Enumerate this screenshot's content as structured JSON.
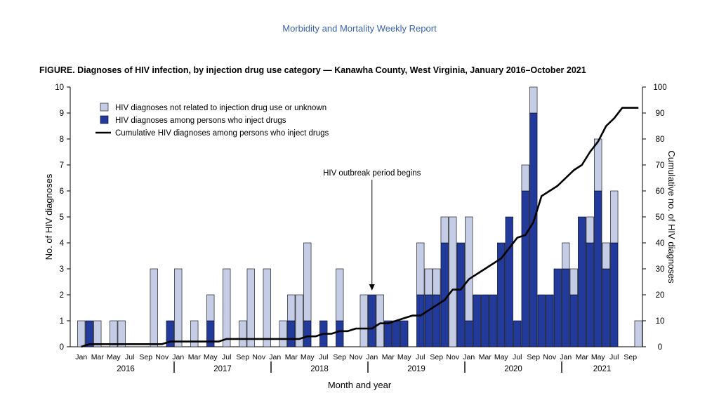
{
  "header": "Morbidity and Mortality Weekly Report",
  "figure_title": "FIGURE. Diagnoses of HIV infection, by injection drug use category — Kanawha County, West Virginia, January 2016–October 2021",
  "colors": {
    "not_pwid": "#c5cde6",
    "pwid": "#213a9c",
    "cumulative": "#000000"
  },
  "chart_data": {
    "type": "bar",
    "stacked": true,
    "xlabel": "Month and year",
    "ylabel": "No. of HIV diagnoses",
    "y2label": "Cumulative no. of HIV diagnoses",
    "ylim": [
      0,
      10
    ],
    "y2lim": [
      0,
      100
    ],
    "yticks": [
      0,
      1,
      2,
      3,
      4,
      5,
      6,
      7,
      8,
      9,
      10
    ],
    "y2ticks": [
      0,
      10,
      20,
      30,
      40,
      50,
      60,
      70,
      80,
      90,
      100
    ],
    "years": [
      "2016",
      "2017",
      "2018",
      "2019",
      "2020",
      "2021"
    ],
    "month_tick_labels": [
      "Jan",
      "Mar",
      "May",
      "Jul",
      "Sep",
      "Nov"
    ],
    "month_tick_labels_2021": [
      "Jan",
      "Mar",
      "May",
      "Jul",
      "Sep"
    ],
    "legend_position": "top-left",
    "legend": [
      "HIV diagnoses not related to injection drug use or unknown",
      "HIV diagnoses among persons who inject drugs",
      "Cumulative HIV diagnoses among persons who inject drugs"
    ],
    "annotation": {
      "text": "HIV outbreak period begins",
      "x": "2019-01"
    },
    "categories": [
      "2016-01",
      "2016-02",
      "2016-03",
      "2016-04",
      "2016-05",
      "2016-06",
      "2016-07",
      "2016-08",
      "2016-09",
      "2016-10",
      "2016-11",
      "2016-12",
      "2017-01",
      "2017-02",
      "2017-03",
      "2017-04",
      "2017-05",
      "2017-06",
      "2017-07",
      "2017-08",
      "2017-09",
      "2017-10",
      "2017-11",
      "2017-12",
      "2018-01",
      "2018-02",
      "2018-03",
      "2018-04",
      "2018-05",
      "2018-06",
      "2018-07",
      "2018-08",
      "2018-09",
      "2018-10",
      "2018-11",
      "2018-12",
      "2019-01",
      "2019-02",
      "2019-03",
      "2019-04",
      "2019-05",
      "2019-06",
      "2019-07",
      "2019-08",
      "2019-09",
      "2019-10",
      "2019-11",
      "2019-12",
      "2020-01",
      "2020-02",
      "2020-03",
      "2020-04",
      "2020-05",
      "2020-06",
      "2020-07",
      "2020-08",
      "2020-09",
      "2020-10",
      "2020-11",
      "2020-12",
      "2021-01",
      "2021-02",
      "2021-03",
      "2021-04",
      "2021-05",
      "2021-06",
      "2021-07",
      "2021-08",
      "2021-09",
      "2021-10"
    ],
    "series": [
      {
        "name": "HIV diagnoses among persons who inject drugs",
        "values": [
          0,
          1,
          0,
          0,
          0,
          0,
          0,
          0,
          0,
          0,
          0,
          1,
          0,
          0,
          0,
          0,
          1,
          0,
          0,
          0,
          0,
          0,
          0,
          0,
          0,
          0,
          1,
          0,
          1,
          0,
          1,
          0,
          1,
          0,
          0,
          0,
          2,
          0,
          1,
          1,
          1,
          0,
          2,
          2,
          2,
          4,
          0,
          4,
          1,
          2,
          2,
          2,
          4,
          5,
          1,
          6,
          9,
          2,
          2,
          3,
          3,
          2,
          5,
          4,
          6,
          3,
          4,
          0,
          0,
          0
        ]
      },
      {
        "name": "HIV diagnoses not related to injection drug use or unknown",
        "values": [
          1,
          0,
          1,
          0,
          1,
          1,
          0,
          0,
          0,
          3,
          0,
          0,
          3,
          0,
          1,
          0,
          1,
          0,
          3,
          0,
          1,
          3,
          0,
          3,
          0,
          1,
          1,
          2,
          3,
          0,
          0,
          0,
          2,
          0,
          0,
          2,
          0,
          2,
          0,
          0,
          0,
          0,
          2,
          1,
          1,
          1,
          5,
          0,
          4,
          0,
          0,
          0,
          0,
          0,
          0,
          1,
          1,
          0,
          0,
          0,
          1,
          1,
          0,
          1,
          2,
          1,
          2,
          0,
          0,
          1
        ]
      },
      {
        "name": "Cumulative HIV diagnoses among persons who inject drugs",
        "values": [
          0,
          1,
          1,
          1,
          1,
          1,
          1,
          1,
          1,
          1,
          1,
          2,
          2,
          2,
          2,
          2,
          2,
          2,
          3,
          3,
          3,
          3,
          3,
          3,
          3,
          3,
          3,
          3,
          4,
          4,
          5,
          5,
          6,
          6,
          7,
          7,
          7,
          9,
          9,
          10,
          11,
          12,
          12,
          14,
          16,
          18,
          22,
          22,
          26,
          28,
          30,
          32,
          34,
          38,
          42,
          43,
          48,
          58,
          60,
          62,
          65,
          68,
          70,
          75,
          79,
          85,
          88,
          92,
          92,
          92
        ]
      }
    ]
  }
}
